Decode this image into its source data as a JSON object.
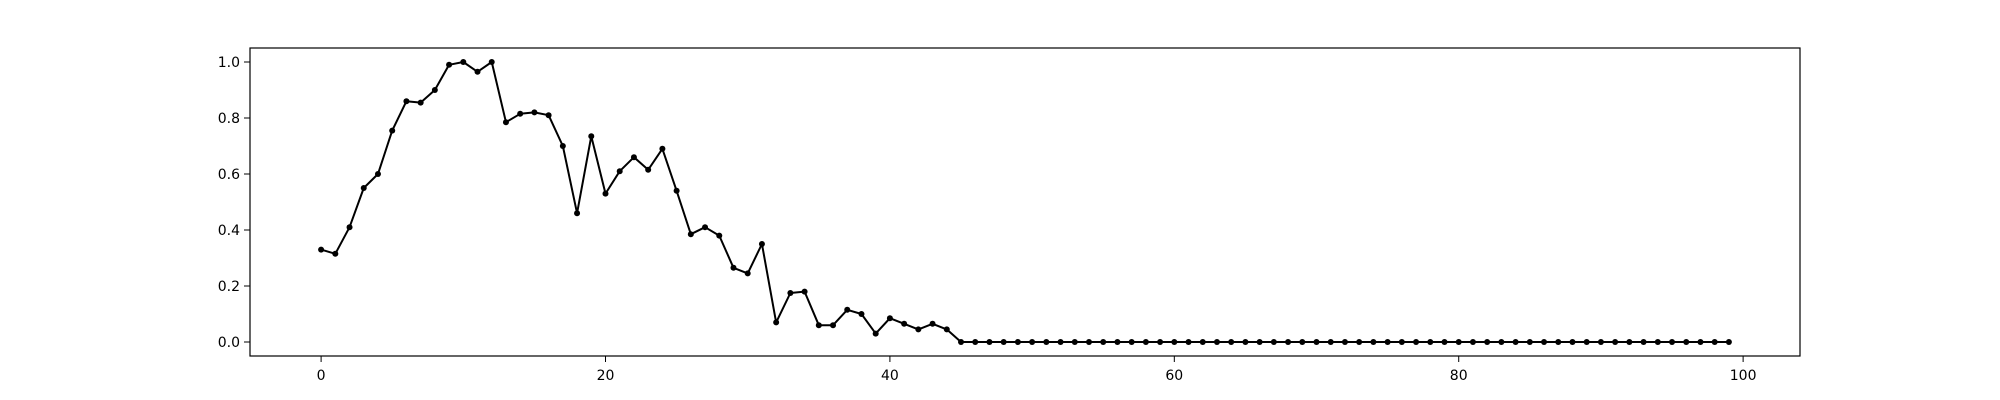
{
  "chart_data": {
    "type": "line",
    "title": "",
    "xlabel": "",
    "ylabel": "",
    "xlim": [
      -5,
      104
    ],
    "ylim": [
      -0.05,
      1.05
    ],
    "grid": false,
    "legend": "none",
    "xticks": [
      0,
      20,
      40,
      60,
      80,
      100
    ],
    "yticks": [
      0.0,
      0.2,
      0.4,
      0.6,
      0.8,
      1.0
    ],
    "xtick_labels": [
      "0",
      "20",
      "40",
      "60",
      "80",
      "100"
    ],
    "ytick_labels": [
      "0.0",
      "0.2",
      "0.4",
      "0.6",
      "0.8",
      "1.0"
    ],
    "series": [
      {
        "color": "#000000",
        "marker": "circle",
        "x": [
          0,
          1,
          2,
          3,
          4,
          5,
          6,
          7,
          8,
          9,
          10,
          11,
          12,
          13,
          14,
          15,
          16,
          17,
          18,
          19,
          20,
          21,
          22,
          23,
          24,
          25,
          26,
          27,
          28,
          29,
          30,
          31,
          32,
          33,
          34,
          35,
          36,
          37,
          38,
          39,
          40,
          41,
          42,
          43,
          44,
          45,
          46,
          47,
          48,
          49,
          50,
          51,
          52,
          53,
          54,
          55,
          56,
          57,
          58,
          59,
          60,
          61,
          62,
          63,
          64,
          65,
          66,
          67,
          68,
          69,
          70,
          71,
          72,
          73,
          74,
          75,
          76,
          77,
          78,
          79,
          80,
          81,
          82,
          83,
          84,
          85,
          86,
          87,
          88,
          89,
          90,
          91,
          92,
          93,
          94,
          95,
          96,
          97,
          98,
          99
        ],
        "y": [
          0.33,
          0.315,
          0.41,
          0.55,
          0.6,
          0.755,
          0.86,
          0.855,
          0.9,
          0.99,
          1.0,
          0.965,
          1.0,
          0.785,
          0.815,
          0.82,
          0.81,
          0.7,
          0.46,
          0.735,
          0.53,
          0.61,
          0.66,
          0.615,
          0.69,
          0.54,
          0.385,
          0.41,
          0.38,
          0.265,
          0.245,
          0.35,
          0.07,
          0.175,
          0.18,
          0.06,
          0.06,
          0.115,
          0.1,
          0.03,
          0.085,
          0.065,
          0.045,
          0.065,
          0.045,
          0.0,
          0.0,
          0.0,
          0.0,
          0.0,
          0.0,
          0.0,
          0.0,
          0.0,
          0.0,
          0.0,
          0.0,
          0.0,
          0.0,
          0.0,
          0.0,
          0.0,
          0.0,
          0.0,
          0.0,
          0.0,
          0.0,
          0.0,
          0.0,
          0.0,
          0.0,
          0.0,
          0.0,
          0.0,
          0.0,
          0.0,
          0.0,
          0.0,
          0.0,
          0.0,
          0.0,
          0.0,
          0.0,
          0.0,
          0.0,
          0.0,
          0.0,
          0.0,
          0.0,
          0.0,
          0.0,
          0.0,
          0.0,
          0.0,
          0.0,
          0.0,
          0.0,
          0.0,
          0.0,
          0.0
        ]
      }
    ]
  }
}
